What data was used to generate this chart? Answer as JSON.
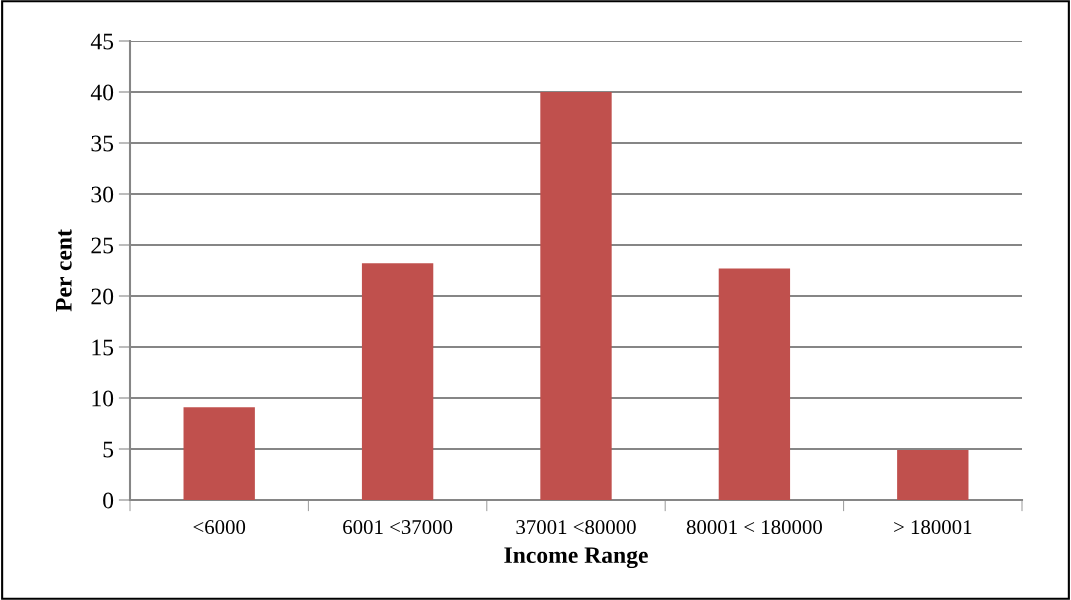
{
  "chart_data": {
    "type": "bar",
    "xlabel": "Income Range",
    "ylabel": "Per cent",
    "categories": [
      "<6000",
      "6001 <37000",
      "37001 <80000",
      "80001 < 180000",
      "> 180001"
    ],
    "values": [
      9.1,
      23.2,
      40,
      22.7,
      4.9
    ],
    "color": "#c0504d",
    "ylim": [
      0,
      45
    ],
    "yticks": [
      0,
      5,
      10,
      15,
      20,
      25,
      30,
      35,
      40,
      45
    ],
    "grid": "y"
  }
}
